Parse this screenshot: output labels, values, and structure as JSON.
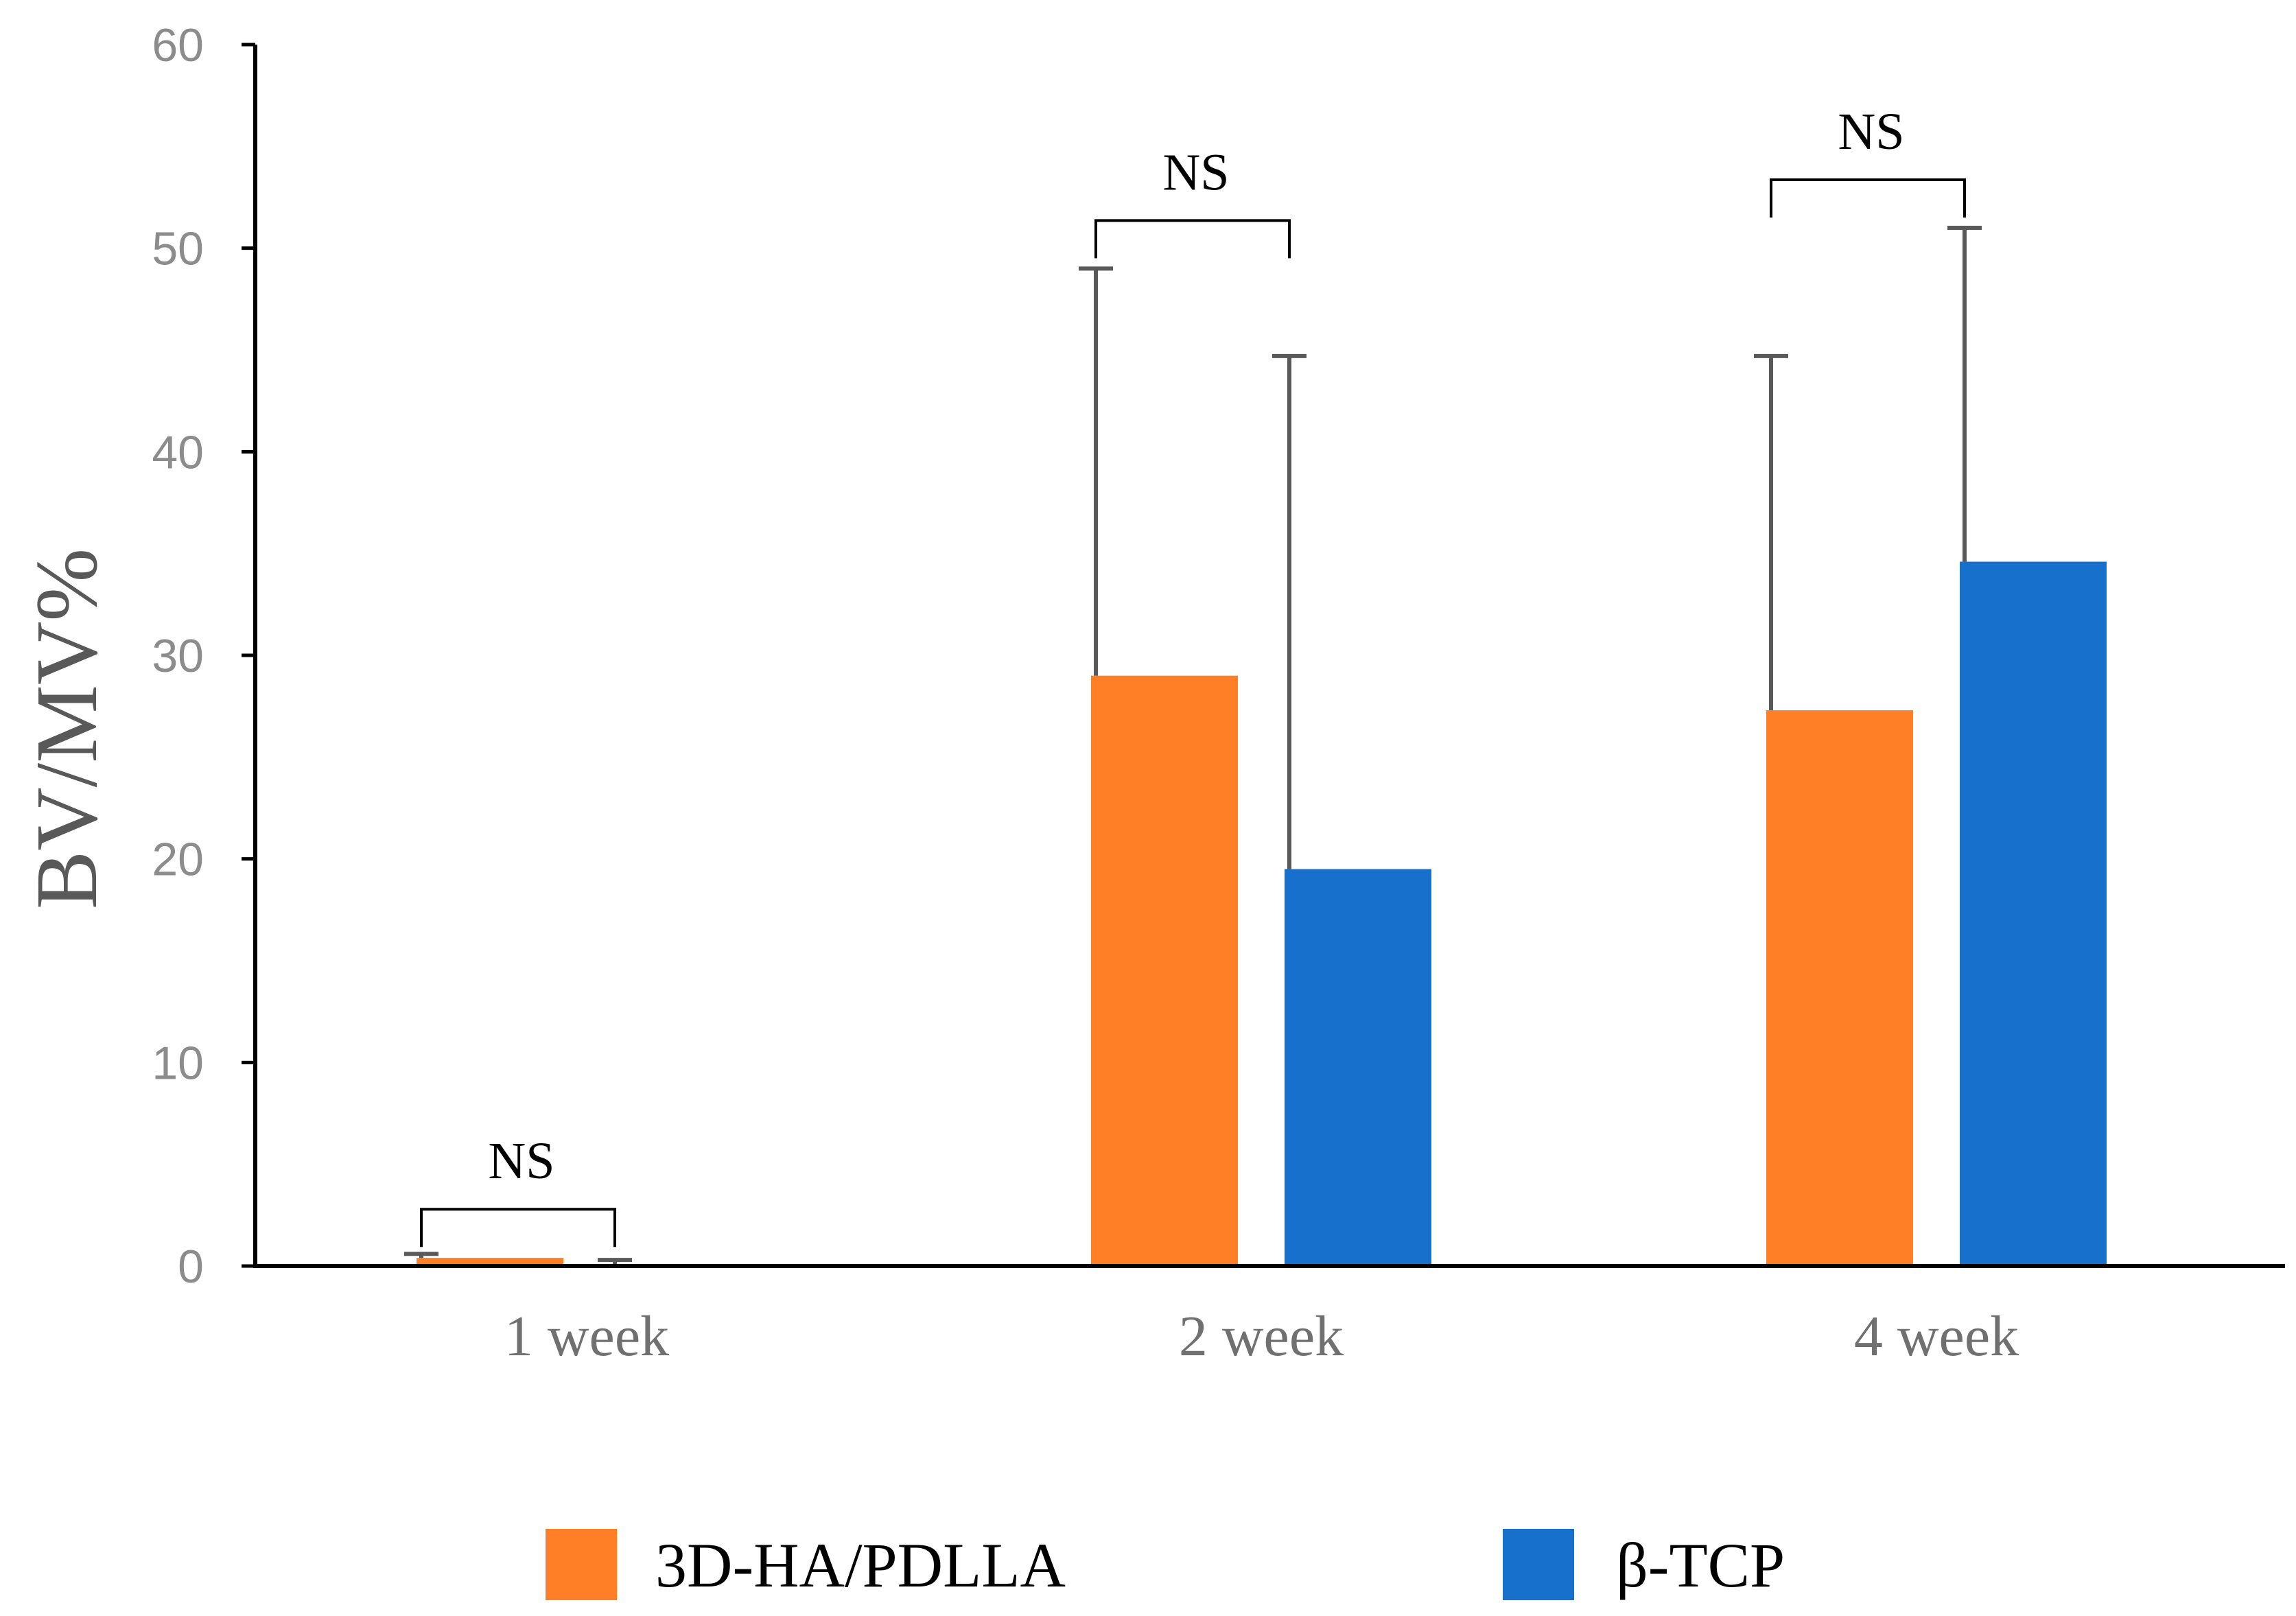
{
  "chart_data": {
    "type": "bar",
    "title": "",
    "xlabel": "",
    "ylabel": "BV/MV%",
    "ylim": [
      0,
      60
    ],
    "yticks": [
      0,
      10,
      20,
      30,
      40,
      50,
      60
    ],
    "grid": false,
    "legend_position": "bottom",
    "categories": [
      "1 week",
      "2 week",
      "4 week"
    ],
    "series": [
      {
        "name": "3D-HA/PDLLA",
        "color": "#fe7f26",
        "values": [
          0.4,
          29.0,
          27.3
        ],
        "errors": [
          0.2,
          20.0,
          17.4
        ]
      },
      {
        "name": "β-TCP",
        "color": "#1771cc",
        "values": [
          0.05,
          19.5,
          34.6
        ],
        "errors": [
          0.25,
          25.2,
          16.4
        ]
      }
    ],
    "annotations": [
      {
        "text": "NS",
        "category": "1 week"
      },
      {
        "text": "NS",
        "category": "2 week"
      },
      {
        "text": "NS",
        "category": "4 week"
      }
    ],
    "colors": {
      "axis": "#000000",
      "error_bar": "#595959",
      "tick_text": "#8c8c8c"
    }
  }
}
